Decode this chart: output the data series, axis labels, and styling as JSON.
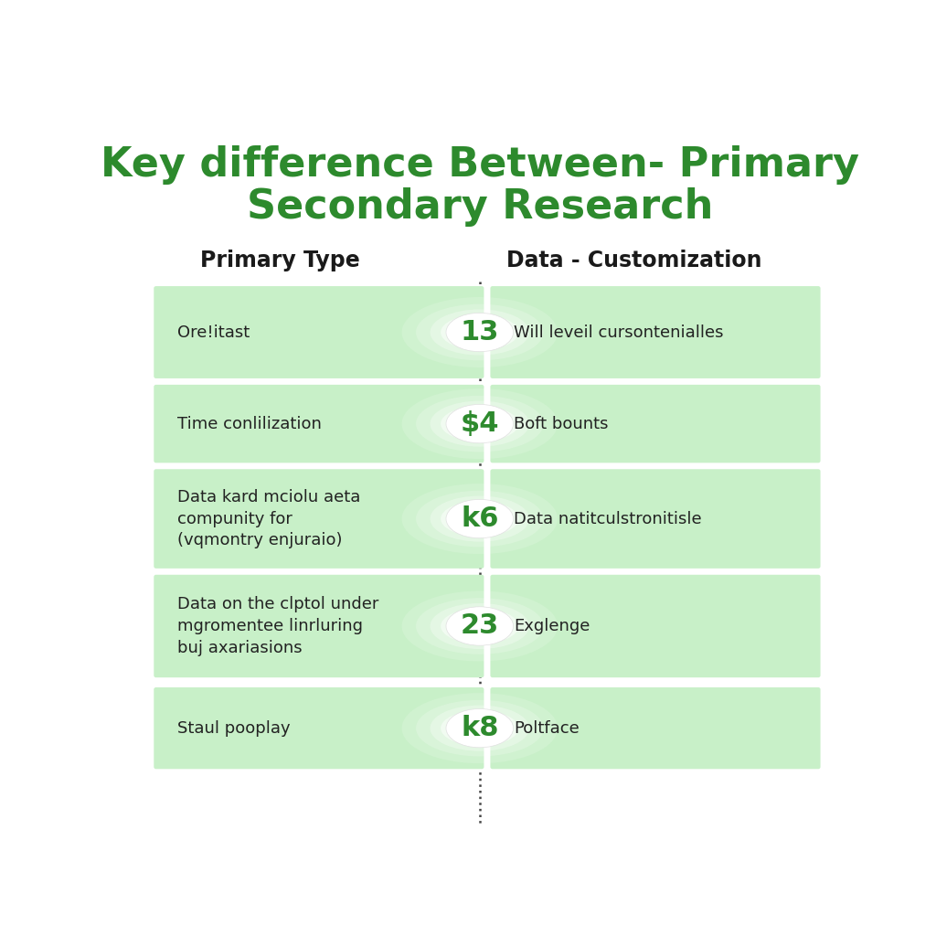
{
  "title_line1": "Key difference Between- Primary",
  "title_line2": "Secondary Research",
  "title_color": "#2d8a2d",
  "left_header": "Primary Type",
  "right_header": "Data - Customization",
  "header_color": "#1a1a1a",
  "rows": [
    {
      "left": "Ore!itast",
      "center": "13",
      "right": "Will leveil cursontenialles"
    },
    {
      "left": "Time conlilization",
      "center": "$4",
      "right": "Boft bounts"
    },
    {
      "left": "Data kard mciolu aeta\ncompunity for\n(vqmontry enjuraio)",
      "center": "k6",
      "right": "Data natitculstronitisle"
    },
    {
      "left": "Data on the clptol under\nmgromentee linrluring\nbuj axariasions",
      "center": "23",
      "right": "Exglenge"
    },
    {
      "left": "Staul pooplay",
      "center": "k8",
      "right": "Poltface"
    }
  ],
  "row_bg_color": "#c8f0c8",
  "center_text_color": "#2d8a2d",
  "divider_color": "#444444",
  "background_color": "#ffffff",
  "text_color": "#222222"
}
